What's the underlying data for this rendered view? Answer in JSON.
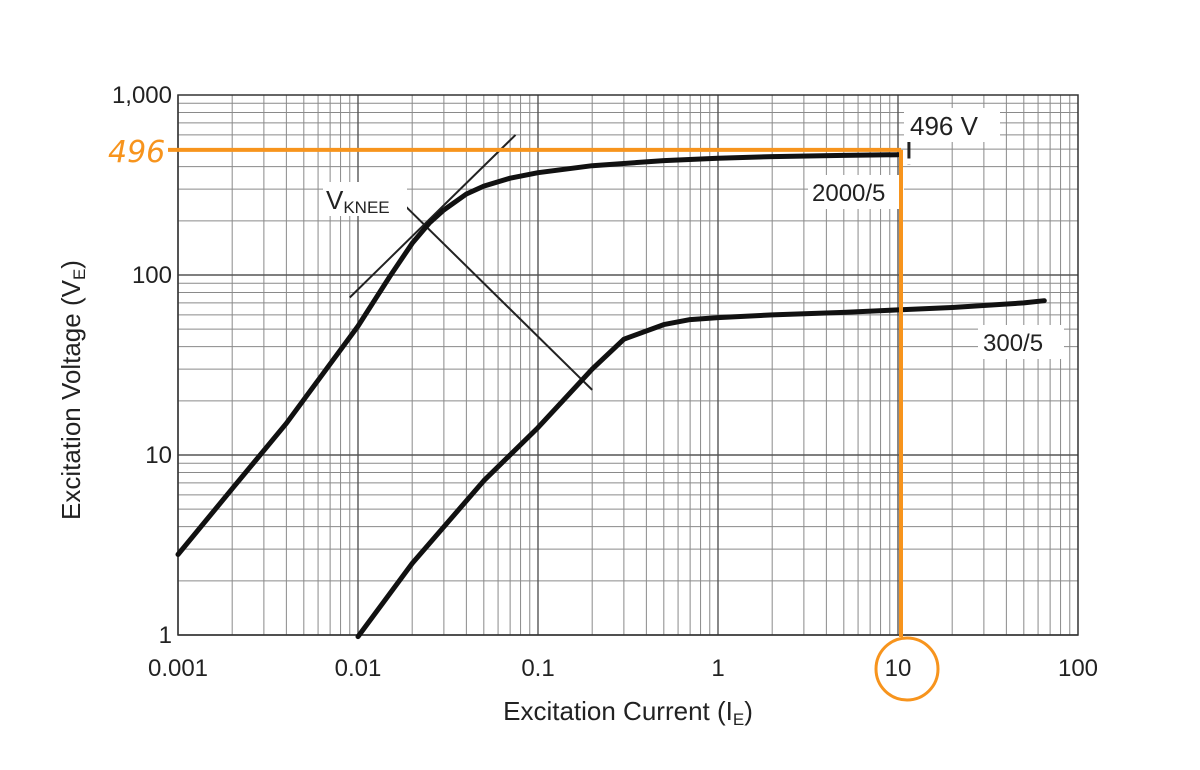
{
  "chart_data": {
    "type": "line",
    "xscale": "log",
    "yscale": "log",
    "xlim": [
      0.001,
      100
    ],
    "ylim": [
      1,
      1000
    ],
    "grid": true,
    "xlabel": "Excitation Current (I",
    "xlabel_sub": "E",
    "xlabel_end": ")",
    "ylabel": "Excitation Voltage (V",
    "ylabel_sub": "E",
    "ylabel_end": ")",
    "x_ticks": [
      {
        "value": 0.001,
        "label": "0.001"
      },
      {
        "value": 0.01,
        "label": "0.01"
      },
      {
        "value": 0.1,
        "label": "0.1"
      },
      {
        "value": 1,
        "label": "1"
      },
      {
        "value": 10,
        "label": "10"
      },
      {
        "value": 100,
        "label": "100"
      }
    ],
    "y_ticks": [
      {
        "value": 1,
        "label": "1"
      },
      {
        "value": 10,
        "label": "10"
      },
      {
        "value": 100,
        "label": "100"
      },
      {
        "value": 1000,
        "label": "1,000"
      }
    ],
    "series": [
      {
        "name": "2000/5",
        "x": [
          0.001,
          0.002,
          0.004,
          0.006,
          0.01,
          0.015,
          0.02,
          0.025,
          0.03,
          0.04,
          0.05,
          0.07,
          0.1,
          0.2,
          0.5,
          1,
          2,
          5,
          10
        ],
        "y": [
          2.8,
          6.5,
          15,
          26,
          52,
          98,
          150,
          195,
          230,
          282,
          312,
          345,
          370,
          405,
          432,
          445,
          455,
          462,
          466
        ]
      },
      {
        "name": "300/5",
        "x": [
          0.01,
          0.02,
          0.05,
          0.1,
          0.2,
          0.3,
          0.5,
          0.7,
          1,
          2,
          5,
          10,
          20,
          50,
          65
        ],
        "y": [
          0.98,
          2.5,
          7.2,
          14.2,
          30,
          44,
          53,
          56.5,
          58,
          60,
          62,
          64,
          66,
          70,
          72
        ]
      }
    ],
    "knee": {
      "label": "V",
      "label_sub": "KNEE",
      "tangent": {
        "x": [
          0.009,
          0.075
        ],
        "y": [
          75,
          600
        ]
      },
      "knee_line": {
        "x": [
          0.017,
          0.2
        ],
        "y": [
          260,
          23
        ]
      }
    },
    "annotations": {
      "voltage_label": "496 V",
      "voltage_marker": {
        "x": 11.5,
        "y": [
          410,
          760
        ]
      },
      "handwritten_value": "496",
      "guide": {
        "x": 10,
        "y": 496,
        "color": "#F7941D"
      },
      "circled_tick": "10"
    }
  }
}
